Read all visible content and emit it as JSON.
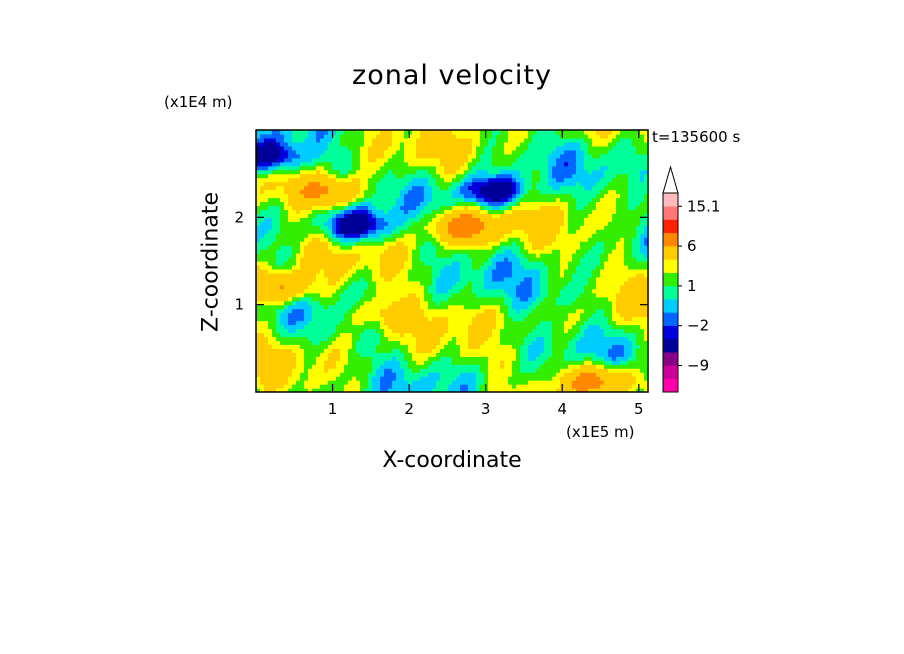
{
  "chart_data": {
    "type": "heatmap",
    "title": "zonal velocity",
    "xlabel": "X-coordinate",
    "ylabel": "Z-coordinate",
    "x_unit": "(x1E5 m)",
    "y_unit": "(x1E4 m)",
    "annotation": "t=135600 s",
    "x_ticks": [
      "1",
      "2",
      "3",
      "4",
      "5"
    ],
    "y_ticks": [
      "1",
      "2"
    ],
    "xlim": [
      0,
      5.12
    ],
    "ylim": [
      0,
      3.0
    ],
    "colorbar": {
      "levels": [
        -15,
        -12,
        -9,
        -6,
        -3,
        -2,
        -1,
        0,
        1,
        2,
        3,
        6,
        9,
        12,
        15.1
      ],
      "colors": [
        "#ff00aa",
        "#cc0099",
        "#880088",
        "#000099",
        "#0000dd",
        "#0066ff",
        "#00ccff",
        "#00ff99",
        "#33ee00",
        "#ffff00",
        "#ffcc00",
        "#ff8800",
        "#ff2200",
        "#ff7777",
        "#ffbbbb"
      ],
      "labels": [
        "15.1",
        "6",
        "1",
        "−2",
        "−9"
      ],
      "extend_max": true
    },
    "field_features": [
      {
        "x": 1.0,
        "z": 2.3,
        "value": 6,
        "note": "upper-left positive core"
      },
      {
        "x": 1.3,
        "z": 1.9,
        "value": -6
      },
      {
        "x": 3.1,
        "z": 2.3,
        "value": -6
      },
      {
        "x": 2.7,
        "z": 1.9,
        "value": 6
      },
      {
        "x": 0.3,
        "z": 1.2,
        "value": 6
      },
      {
        "x": 1.6,
        "z": 0.9,
        "value": 3
      },
      {
        "x": 3.2,
        "z": 0.6,
        "value": -1
      },
      {
        "x": 4.0,
        "z": 1.1,
        "value": -1
      },
      {
        "x": 4.5,
        "z": 0.15,
        "value": 6
      },
      {
        "x": 0.2,
        "z": 2.7,
        "value": -6
      }
    ]
  }
}
